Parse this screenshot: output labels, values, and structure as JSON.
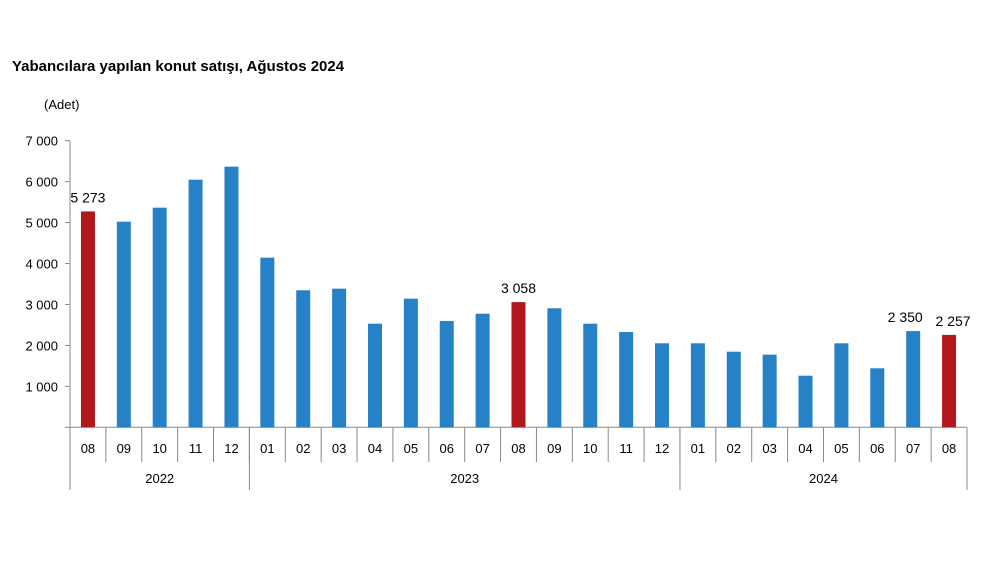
{
  "chart_data": {
    "type": "bar",
    "title": "Yabancılara yapılan konut satışı, Ağustos 2024",
    "ylabel": "(Adet)",
    "xlabel": "",
    "ylim": [
      0,
      7000
    ],
    "yticks": [
      1000,
      2000,
      3000,
      4000,
      5000,
      6000,
      7000
    ],
    "ytick_labels": [
      "1 000",
      "2 000",
      "3 000",
      "4 000",
      "5 000",
      "6 000",
      "7 000"
    ],
    "grid": false,
    "categories": [
      "08",
      "09",
      "10",
      "11",
      "12",
      "01",
      "02",
      "03",
      "04",
      "05",
      "06",
      "07",
      "08",
      "09",
      "10",
      "11",
      "12",
      "01",
      "02",
      "03",
      "04",
      "05",
      "06",
      "07",
      "08"
    ],
    "year_groups": [
      {
        "label": "2022",
        "count": 5
      },
      {
        "label": "2023",
        "count": 12
      },
      {
        "label": "2024",
        "count": 8
      }
    ],
    "values": [
      5273,
      5022,
      5364,
      6048,
      6366,
      4143,
      3346,
      3386,
      2531,
      3142,
      2597,
      2775,
      3058,
      2907,
      2531,
      2328,
      2052,
      2052,
      1847,
      1774,
      1261,
      2052,
      1441,
      2350,
      2257
    ],
    "data_labels": {
      "0": "5 273",
      "12": "3 058",
      "23": "2 350",
      "24": "2 257"
    },
    "highlighted": [
      0,
      12,
      24
    ],
    "colors": {
      "default": "#2781c6",
      "highlight": "#b0181c",
      "axis": "#888888"
    }
  }
}
